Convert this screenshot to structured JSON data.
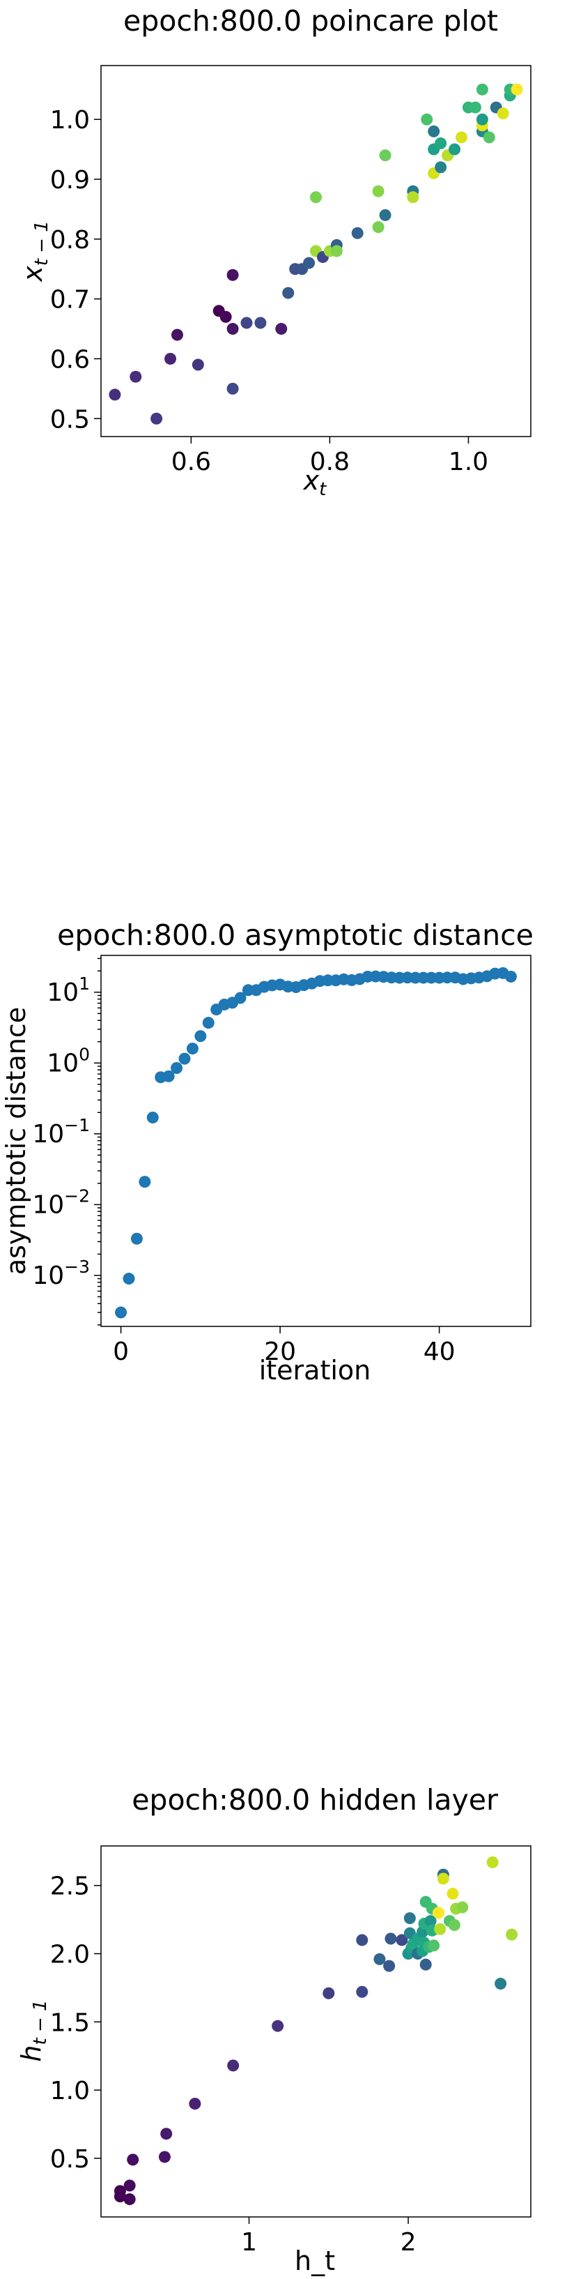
{
  "chart_data": [
    {
      "type": "scatter",
      "title": "epoch:800.0 poincare plot",
      "xlabel": "x_t",
      "ylabel": "x_{t-1}",
      "xlim": [
        0.47,
        1.09
      ],
      "ylim": [
        0.47,
        1.09
      ],
      "xticks": [
        "0.6",
        "0.8",
        "1.0"
      ],
      "yticks": [
        "0.5",
        "0.6",
        "0.7",
        "0.8",
        "0.9",
        "1.0"
      ],
      "grid": false,
      "colormap": "viridis",
      "points": [
        {
          "x": 0.49,
          "y": 0.54,
          "c": "#46307e"
        },
        {
          "x": 0.52,
          "y": 0.57,
          "c": "#472d7b"
        },
        {
          "x": 0.55,
          "y": 0.5,
          "c": "#443983"
        },
        {
          "x": 0.57,
          "y": 0.6,
          "c": "#482475"
        },
        {
          "x": 0.58,
          "y": 0.64,
          "c": "#471365"
        },
        {
          "x": 0.61,
          "y": 0.59,
          "c": "#463480"
        },
        {
          "x": 0.64,
          "y": 0.68,
          "c": "#440154"
        },
        {
          "x": 0.65,
          "y": 0.67,
          "c": "#46075a"
        },
        {
          "x": 0.66,
          "y": 0.65,
          "c": "#481668"
        },
        {
          "x": 0.66,
          "y": 0.74,
          "c": "#471164"
        },
        {
          "x": 0.66,
          "y": 0.55,
          "c": "#3f4889"
        },
        {
          "x": 0.68,
          "y": 0.66,
          "c": "#404688"
        },
        {
          "x": 0.7,
          "y": 0.66,
          "c": "#3e4c8a"
        },
        {
          "x": 0.73,
          "y": 0.65,
          "c": "#481b6d"
        },
        {
          "x": 0.74,
          "y": 0.71,
          "c": "#38598c"
        },
        {
          "x": 0.75,
          "y": 0.75,
          "c": "#3b528b"
        },
        {
          "x": 0.76,
          "y": 0.75,
          "c": "#39568c"
        },
        {
          "x": 0.77,
          "y": 0.76,
          "c": "#365c8d"
        },
        {
          "x": 0.78,
          "y": 0.78,
          "c": "#a0da39"
        },
        {
          "x": 0.78,
          "y": 0.87,
          "c": "#7ad151"
        },
        {
          "x": 0.79,
          "y": 0.77,
          "c": "#3f4788"
        },
        {
          "x": 0.8,
          "y": 0.78,
          "c": "#9bd93c"
        },
        {
          "x": 0.81,
          "y": 0.79,
          "c": "#355f8d"
        },
        {
          "x": 0.81,
          "y": 0.78,
          "c": "#7fd34e"
        },
        {
          "x": 0.84,
          "y": 0.81,
          "c": "#33638d"
        },
        {
          "x": 0.87,
          "y": 0.82,
          "c": "#7ad151"
        },
        {
          "x": 0.87,
          "y": 0.88,
          "c": "#86d549"
        },
        {
          "x": 0.88,
          "y": 0.84,
          "c": "#2c718e"
        },
        {
          "x": 0.88,
          "y": 0.94,
          "c": "#6ccd5a"
        },
        {
          "x": 0.92,
          "y": 0.88,
          "c": "#2a788e"
        },
        {
          "x": 0.92,
          "y": 0.87,
          "c": "#b5de2b"
        },
        {
          "x": 0.94,
          "y": 1.0,
          "c": "#4ac16d"
        },
        {
          "x": 0.95,
          "y": 0.91,
          "c": "#d2e21b"
        },
        {
          "x": 0.95,
          "y": 0.95,
          "c": "#1fa088"
        },
        {
          "x": 0.95,
          "y": 0.98,
          "c": "#2a788e"
        },
        {
          "x": 0.96,
          "y": 0.92,
          "c": "#26828e"
        },
        {
          "x": 0.96,
          "y": 0.96,
          "c": "#22a785"
        },
        {
          "x": 0.97,
          "y": 0.94,
          "c": "#b8de29"
        },
        {
          "x": 0.98,
          "y": 0.95,
          "c": "#1f9e89"
        },
        {
          "x": 0.99,
          "y": 0.97,
          "c": "#d8e219"
        },
        {
          "x": 1.0,
          "y": 1.02,
          "c": "#31b57b"
        },
        {
          "x": 1.01,
          "y": 1.02,
          "c": "#38b977"
        },
        {
          "x": 1.02,
          "y": 0.98,
          "c": "#23898e"
        },
        {
          "x": 1.02,
          "y": 0.99,
          "c": "#e7e419"
        },
        {
          "x": 1.02,
          "y": 1.0,
          "c": "#1e9b8a"
        },
        {
          "x": 1.02,
          "y": 1.05,
          "c": "#40bd72"
        },
        {
          "x": 1.03,
          "y": 0.97,
          "c": "#54c568"
        },
        {
          "x": 1.04,
          "y": 1.02,
          "c": "#2d718e"
        },
        {
          "x": 1.05,
          "y": 1.01,
          "c": "#dde318"
        },
        {
          "x": 1.06,
          "y": 1.04,
          "c": "#27ad81"
        },
        {
          "x": 1.06,
          "y": 1.05,
          "c": "#35b779"
        },
        {
          "x": 1.07,
          "y": 1.05,
          "c": "#fde725"
        }
      ]
    },
    {
      "type": "scatter",
      "title": "epoch:800.0 asymptotic distance",
      "xlabel": "iteration",
      "ylabel": "asymptotic distance",
      "yscale": "log",
      "xlim": [
        -2.5,
        51.5
      ],
      "ylim_log10": [
        -3.72,
        1.52
      ],
      "xticks": [
        "0",
        "20",
        "40"
      ],
      "yticks": [
        {
          "base": "10",
          "exp": "−3",
          "log10": -3
        },
        {
          "base": "10",
          "exp": "−2",
          "log10": -2
        },
        {
          "base": "10",
          "exp": "−1",
          "log10": -1
        },
        {
          "base": "10",
          "exp": "0",
          "log10": 0
        },
        {
          "base": "10",
          "exp": "1",
          "log10": 1
        }
      ],
      "color": "#1f77b4",
      "grid": false,
      "x": [
        0,
        1,
        2,
        3,
        4,
        5,
        6,
        7,
        8,
        9,
        10,
        11,
        12,
        13,
        14,
        15,
        16,
        17,
        18,
        19,
        20,
        21,
        22,
        23,
        24,
        25,
        26,
        27,
        28,
        29,
        30,
        31,
        32,
        33,
        34,
        35,
        36,
        37,
        38,
        39,
        40,
        41,
        42,
        43,
        44,
        45,
        46,
        47,
        48,
        49
      ],
      "y": [
        0.0003,
        0.0009,
        0.0033,
        0.021,
        0.17,
        0.63,
        0.65,
        0.85,
        1.15,
        1.6,
        2.4,
        3.7,
        5.7,
        6.7,
        7.1,
        8.3,
        10.7,
        10.7,
        11.9,
        12.5,
        12.8,
        12.0,
        11.8,
        12.6,
        13.3,
        14.4,
        14.7,
        14.7,
        15.2,
        14.8,
        15.3,
        16.6,
        16.7,
        16.5,
        16.1,
        16.0,
        16.1,
        16.0,
        16.0,
        16.0,
        16.0,
        16.1,
        16.1,
        15.3,
        15.7,
        16.1,
        16.8,
        18.3,
        18.6,
        16.6
      ]
    },
    {
      "type": "scatter",
      "title": "epoch:800.0 hidden layer",
      "xlabel": "h_t",
      "ylabel": "h_{t-1}",
      "xlim": [
        0.07,
        2.77
      ],
      "ylim": [
        0.07,
        2.79
      ],
      "xticks": [
        "1",
        "2"
      ],
      "yticks": [
        "0.5",
        "1.0",
        "1.5",
        "2.0",
        "2.5"
      ],
      "grid": false,
      "colormap": "viridis",
      "points": [
        {
          "x": 0.19,
          "y": 0.22,
          "c": "#440154"
        },
        {
          "x": 0.19,
          "y": 0.26,
          "c": "#440256"
        },
        {
          "x": 0.25,
          "y": 0.2,
          "c": "#450559"
        },
        {
          "x": 0.25,
          "y": 0.3,
          "c": "#460a5d"
        },
        {
          "x": 0.27,
          "y": 0.49,
          "c": "#470e61"
        },
        {
          "x": 0.47,
          "y": 0.51,
          "c": "#481467"
        },
        {
          "x": 0.48,
          "y": 0.68,
          "c": "#481a6c"
        },
        {
          "x": 0.66,
          "y": 0.9,
          "c": "#482173"
        },
        {
          "x": 0.9,
          "y": 1.18,
          "c": "#472a7a"
        },
        {
          "x": 1.18,
          "y": 1.47,
          "c": "#463480"
        },
        {
          "x": 1.5,
          "y": 1.71,
          "c": "#433d84"
        },
        {
          "x": 1.71,
          "y": 1.72,
          "c": "#3f4889"
        },
        {
          "x": 1.71,
          "y": 2.1,
          "c": "#3d4e8a"
        },
        {
          "x": 1.82,
          "y": 1.96,
          "c": "#31678e"
        },
        {
          "x": 1.88,
          "y": 1.91,
          "c": "#38598c"
        },
        {
          "x": 1.89,
          "y": 2.11,
          "c": "#375a8c"
        },
        {
          "x": 1.96,
          "y": 2.1,
          "c": "#3e4a89"
        },
        {
          "x": 2.0,
          "y": 2.0,
          "c": "#21918c"
        },
        {
          "x": 2.01,
          "y": 2.15,
          "c": "#25858e"
        },
        {
          "x": 2.01,
          "y": 2.26,
          "c": "#2a788e"
        },
        {
          "x": 2.02,
          "y": 2.04,
          "c": "#1f9e89"
        },
        {
          "x": 2.03,
          "y": 2.07,
          "c": "#22a884"
        },
        {
          "x": 2.06,
          "y": 2.11,
          "c": "#20a486"
        },
        {
          "x": 2.06,
          "y": 2.0,
          "c": "#2c728e"
        },
        {
          "x": 2.09,
          "y": 2.02,
          "c": "#1fa188"
        },
        {
          "x": 2.09,
          "y": 2.16,
          "c": "#1f958b"
        },
        {
          "x": 2.1,
          "y": 2.08,
          "c": "#22a785"
        },
        {
          "x": 2.1,
          "y": 2.22,
          "c": "#28ae80"
        },
        {
          "x": 2.11,
          "y": 1.92,
          "c": "#355f8d"
        },
        {
          "x": 2.11,
          "y": 2.38,
          "c": "#3bbb75"
        },
        {
          "x": 2.13,
          "y": 2.05,
          "c": "#35b779"
        },
        {
          "x": 2.14,
          "y": 2.24,
          "c": "#1f968b"
        },
        {
          "x": 2.15,
          "y": 2.17,
          "c": "#2ab07f"
        },
        {
          "x": 2.15,
          "y": 2.33,
          "c": "#42be71"
        },
        {
          "x": 2.16,
          "y": 2.06,
          "c": "#4ec36b"
        },
        {
          "x": 2.19,
          "y": 2.3,
          "c": "#fde725"
        },
        {
          "x": 2.2,
          "y": 2.18,
          "c": "#b5de2b"
        },
        {
          "x": 2.22,
          "y": 2.58,
          "c": "#2e6e8e"
        },
        {
          "x": 2.22,
          "y": 2.55,
          "c": "#d5e21a"
        },
        {
          "x": 2.26,
          "y": 2.24,
          "c": "#50c46a"
        },
        {
          "x": 2.28,
          "y": 2.44,
          "c": "#e5e419"
        },
        {
          "x": 2.29,
          "y": 2.21,
          "c": "#6ccd5a"
        },
        {
          "x": 2.3,
          "y": 2.33,
          "c": "#9bd93c"
        },
        {
          "x": 2.34,
          "y": 2.34,
          "c": "#86d549"
        },
        {
          "x": 2.53,
          "y": 2.67,
          "c": "#c2df23"
        },
        {
          "x": 2.58,
          "y": 1.78,
          "c": "#277f8e"
        },
        {
          "x": 2.65,
          "y": 2.14,
          "c": "#a8db34"
        }
      ]
    }
  ]
}
